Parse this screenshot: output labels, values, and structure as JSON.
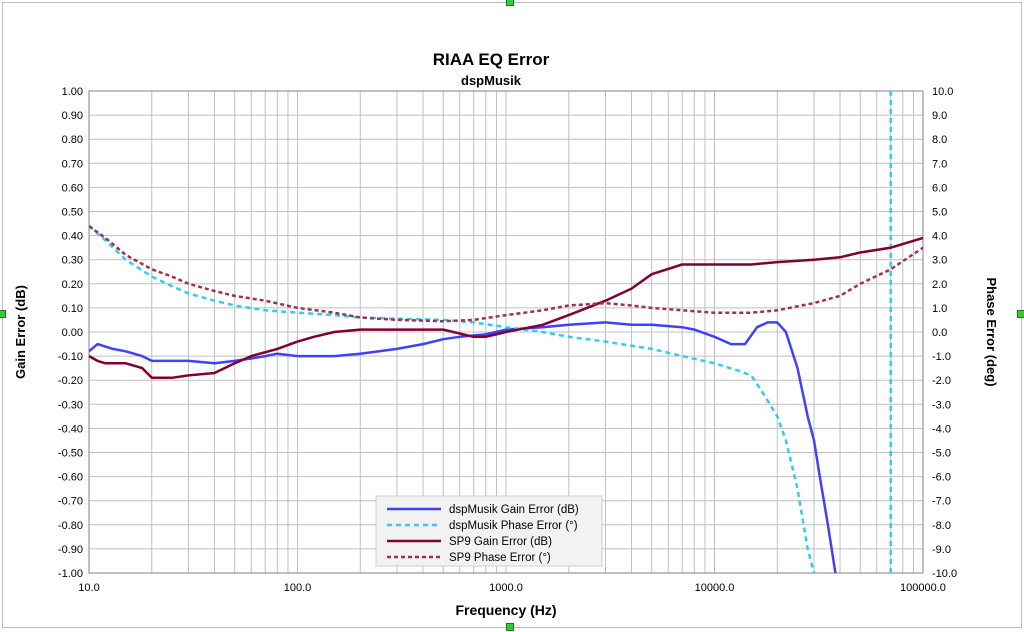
{
  "chart_data": {
    "type": "line",
    "title": "RIAA EQ  Error",
    "subtitle": "dspMusik",
    "xlabel": "Frequency (Hz)",
    "ylabel": "Gain Error (dB)",
    "y2label": "Phase Error (deg)",
    "x_scale": "log",
    "xlim": [
      10,
      100000
    ],
    "ylim": [
      -1.0,
      1.0
    ],
    "y2lim": [
      -10.0,
      10.0
    ],
    "grid": true,
    "legend_position": "bottom-center",
    "x_ticks": [
      "10.0",
      "100.0",
      "1000.0",
      "10000.0",
      "100000.0"
    ],
    "y_ticks": [
      "1.00",
      "0.90",
      "0.80",
      "0.70",
      "0.60",
      "0.50",
      "0.40",
      "0.30",
      "0.20",
      "0.10",
      "0.00",
      "-0.10",
      "-0.20",
      "-0.30",
      "-0.40",
      "-0.50",
      "-0.60",
      "-0.70",
      "-0.80",
      "-0.90",
      "-1.00"
    ],
    "y2_ticks": [
      "10.0",
      "9.0",
      "8.0",
      "7.0",
      "6.0",
      "5.0",
      "4.0",
      "3.0",
      "2.0",
      "1.0",
      "0.0",
      "-1.0",
      "-2.0",
      "-3.0",
      "-4.0",
      "-5.0",
      "-6.0",
      "-7.0",
      "-8.0",
      "-9.0",
      "-10.0"
    ],
    "series": [
      {
        "name": "dspMusik Gain Error (dB)",
        "axis": "left",
        "color": "#4040ff",
        "dash": "solid",
        "points": [
          [
            10,
            -0.08
          ],
          [
            11,
            -0.05
          ],
          [
            13,
            -0.07
          ],
          [
            15,
            -0.08
          ],
          [
            18,
            -0.1
          ],
          [
            20,
            -0.12
          ],
          [
            25,
            -0.12
          ],
          [
            30,
            -0.12
          ],
          [
            40,
            -0.13
          ],
          [
            50,
            -0.12
          ],
          [
            60,
            -0.11
          ],
          [
            70,
            -0.1
          ],
          [
            80,
            -0.09
          ],
          [
            100,
            -0.1
          ],
          [
            120,
            -0.1
          ],
          [
            150,
            -0.1
          ],
          [
            200,
            -0.09
          ],
          [
            300,
            -0.07
          ],
          [
            400,
            -0.05
          ],
          [
            500,
            -0.03
          ],
          [
            600,
            -0.02
          ],
          [
            800,
            -0.01
          ],
          [
            1000,
            0.01
          ],
          [
            1500,
            0.02
          ],
          [
            2000,
            0.03
          ],
          [
            3000,
            0.04
          ],
          [
            4000,
            0.03
          ],
          [
            5000,
            0.03
          ],
          [
            7000,
            0.02
          ],
          [
            8000,
            0.01
          ],
          [
            10000,
            -0.02
          ],
          [
            12000,
            -0.05
          ],
          [
            14000,
            -0.05
          ],
          [
            16000,
            0.02
          ],
          [
            18000,
            0.04
          ],
          [
            20000,
            0.04
          ],
          [
            22000,
            0.0
          ],
          [
            25000,
            -0.15
          ],
          [
            28000,
            -0.35
          ],
          [
            30000,
            -0.45
          ],
          [
            32000,
            -0.6
          ],
          [
            35000,
            -0.8
          ],
          [
            38000,
            -1.0
          ]
        ]
      },
      {
        "name": "dspMusik Phase Error (°)",
        "axis": "right",
        "color": "#33ccee",
        "dash": "dashed",
        "points": [
          [
            10,
            4.4
          ],
          [
            12,
            3.8
          ],
          [
            15,
            3.0
          ],
          [
            20,
            2.3
          ],
          [
            25,
            1.9
          ],
          [
            30,
            1.6
          ],
          [
            40,
            1.3
          ],
          [
            50,
            1.1
          ],
          [
            70,
            0.9
          ],
          [
            100,
            0.8
          ],
          [
            150,
            0.7
          ],
          [
            200,
            0.6
          ],
          [
            300,
            0.55
          ],
          [
            500,
            0.5
          ],
          [
            700,
            0.4
          ],
          [
            1000,
            0.2
          ],
          [
            1500,
            0.0
          ],
          [
            2000,
            -0.2
          ],
          [
            3000,
            -0.4
          ],
          [
            5000,
            -0.7
          ],
          [
            7000,
            -1.0
          ],
          [
            10000,
            -1.3
          ],
          [
            13000,
            -1.6
          ],
          [
            15000,
            -1.8
          ],
          [
            17000,
            -2.5
          ],
          [
            20000,
            -3.5
          ],
          [
            22000,
            -4.5
          ],
          [
            25000,
            -6.5
          ],
          [
            28000,
            -9.0
          ],
          [
            30000,
            -10.0
          ]
        ]
      },
      {
        "name": "SP9 Gain Error (dB)",
        "axis": "left",
        "color": "#800030",
        "dash": "solid",
        "points": [
          [
            10,
            -0.1
          ],
          [
            11,
            -0.12
          ],
          [
            12,
            -0.13
          ],
          [
            15,
            -0.13
          ],
          [
            18,
            -0.15
          ],
          [
            20,
            -0.19
          ],
          [
            25,
            -0.19
          ],
          [
            30,
            -0.18
          ],
          [
            40,
            -0.17
          ],
          [
            50,
            -0.13
          ],
          [
            60,
            -0.1
          ],
          [
            80,
            -0.07
          ],
          [
            100,
            -0.04
          ],
          [
            120,
            -0.02
          ],
          [
            150,
            0.0
          ],
          [
            200,
            0.01
          ],
          [
            300,
            0.01
          ],
          [
            400,
            0.01
          ],
          [
            500,
            0.01
          ],
          [
            700,
            -0.02
          ],
          [
            800,
            -0.02
          ],
          [
            1000,
            0.0
          ],
          [
            1500,
            0.03
          ],
          [
            2000,
            0.07
          ],
          [
            3000,
            0.13
          ],
          [
            4000,
            0.18
          ],
          [
            5000,
            0.24
          ],
          [
            7000,
            0.28
          ],
          [
            10000,
            0.28
          ],
          [
            15000,
            0.28
          ],
          [
            20000,
            0.29
          ],
          [
            30000,
            0.3
          ],
          [
            40000,
            0.31
          ],
          [
            50000,
            0.33
          ],
          [
            70000,
            0.35
          ],
          [
            100000,
            0.39
          ]
        ]
      },
      {
        "name": "SP9 Phase Error (°)",
        "axis": "right",
        "color": "#a03050",
        "dash": "dotted",
        "points": [
          [
            10,
            4.4
          ],
          [
            12,
            3.9
          ],
          [
            15,
            3.2
          ],
          [
            20,
            2.6
          ],
          [
            25,
            2.3
          ],
          [
            30,
            2.0
          ],
          [
            40,
            1.7
          ],
          [
            50,
            1.5
          ],
          [
            70,
            1.3
          ],
          [
            100,
            1.0
          ],
          [
            150,
            0.8
          ],
          [
            200,
            0.6
          ],
          [
            300,
            0.5
          ],
          [
            500,
            0.45
          ],
          [
            700,
            0.5
          ],
          [
            1000,
            0.7
          ],
          [
            1500,
            0.9
          ],
          [
            2000,
            1.1
          ],
          [
            3000,
            1.2
          ],
          [
            4000,
            1.1
          ],
          [
            5000,
            1.0
          ],
          [
            7000,
            0.9
          ],
          [
            10000,
            0.8
          ],
          [
            15000,
            0.8
          ],
          [
            20000,
            0.9
          ],
          [
            30000,
            1.2
          ],
          [
            40000,
            1.5
          ],
          [
            50000,
            2.0
          ],
          [
            70000,
            2.6
          ],
          [
            100000,
            3.5
          ]
        ]
      }
    ],
    "vertical_marker": {
      "x": 70000,
      "color": "#33ccee",
      "dash": "dashed"
    }
  }
}
